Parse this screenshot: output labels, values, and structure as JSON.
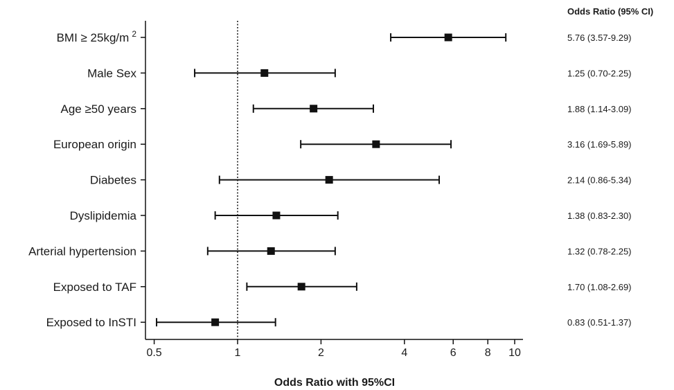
{
  "chart_data": {
    "type": "forest",
    "xlabel": "Odds Ratio with 95%CI",
    "x_scale": "log",
    "xlim": [
      0.45,
      11
    ],
    "reference_line": 1,
    "xticks": [
      0.5,
      1,
      2,
      4,
      6,
      8,
      10
    ],
    "xtick_labels": [
      "0.5",
      "1",
      "2",
      "4",
      "6",
      "8",
      "10"
    ],
    "right_column_header": "Odds Ratio (95% CI)",
    "rows": [
      {
        "label_main": "BMI ≥ 25kg/m",
        "label_sup": "2",
        "or": 5.76,
        "lower": 3.57,
        "upper": 9.29,
        "text": "5.76 (3.57-9.29)"
      },
      {
        "label_main": "Male Sex",
        "label_sup": "",
        "or": 1.25,
        "lower": 0.7,
        "upper": 2.25,
        "text": "1.25 (0.70-2.25)"
      },
      {
        "label_main": "Age ≥50 years",
        "label_sup": "",
        "or": 1.88,
        "lower": 1.14,
        "upper": 3.09,
        "text": "1.88 (1.14-3.09)"
      },
      {
        "label_main": "European origin",
        "label_sup": "",
        "or": 3.16,
        "lower": 1.69,
        "upper": 5.89,
        "text": "3.16 (1.69-5.89)"
      },
      {
        "label_main": "Diabetes",
        "label_sup": "",
        "or": 2.14,
        "lower": 0.86,
        "upper": 5.34,
        "text": "2.14 (0.86-5.34)"
      },
      {
        "label_main": "Dyslipidemia",
        "label_sup": "",
        "or": 1.38,
        "lower": 0.83,
        "upper": 2.3,
        "text": "1.38 (0.83-2.30)"
      },
      {
        "label_main": "Arterial hypertension",
        "label_sup": "",
        "or": 1.32,
        "lower": 0.78,
        "upper": 2.25,
        "text": "1.32 (0.78-2.25)"
      },
      {
        "label_main": "Exposed to TAF",
        "label_sup": "",
        "or": 1.7,
        "lower": 1.08,
        "upper": 2.69,
        "text": "1.70 (1.08-2.69)"
      },
      {
        "label_main": "Exposed to InSTI",
        "label_sup": "",
        "or": 0.83,
        "lower": 0.51,
        "upper": 1.37,
        "text": "0.83 (0.51-1.37)"
      }
    ],
    "colors": {
      "marks": "#111111",
      "text": "#1a1a1a"
    }
  }
}
